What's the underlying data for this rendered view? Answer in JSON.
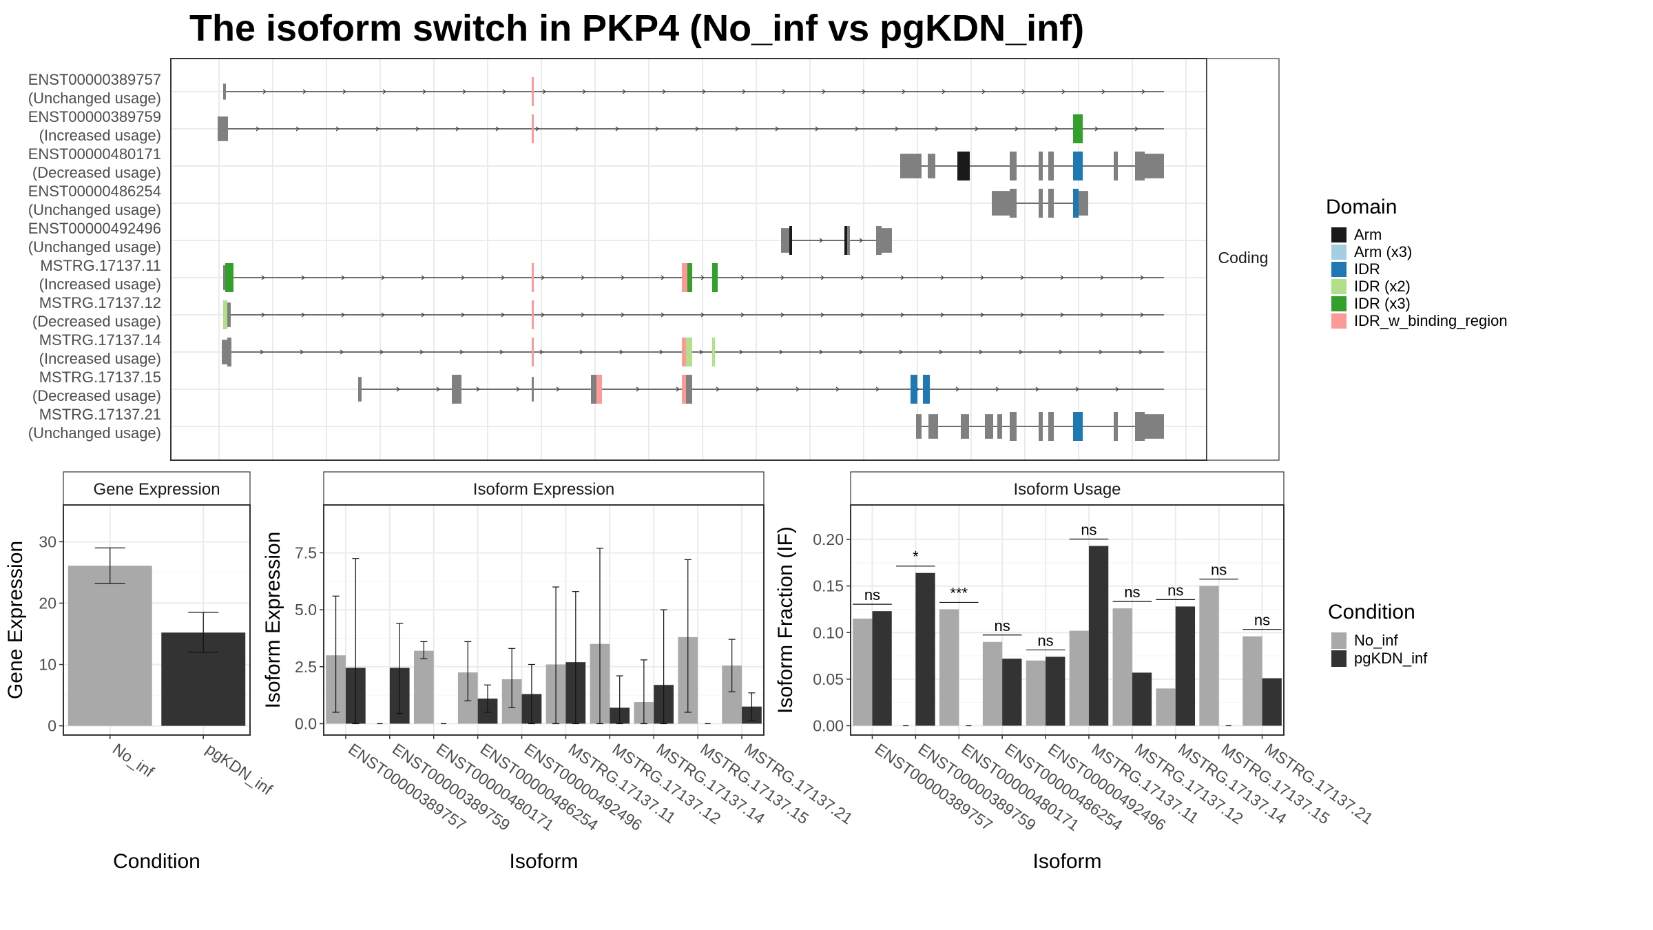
{
  "title": "The isoform switch in PKP4 (No_inf vs pgKDN_inf)",
  "colors": {
    "Arm": "#1a1a1a",
    "Arm (x3)": "#a6cee3",
    "IDR": "#1f78b4",
    "IDR (x2)": "#b2df8a",
    "IDR (x3)": "#33a02c",
    "IDR_w_binding_region": "#fb9a99",
    "no_domain": "#808080",
    "No_inf": "#a9a9a9",
    "pgKDN_inf": "#333333"
  },
  "structure_panel": {
    "strip_label": "Coding",
    "isoforms": [
      {
        "id": "ENST00000389757",
        "usage": "(Unchanged usage)"
      },
      {
        "id": "ENST00000389759",
        "usage": "(Increased usage)"
      },
      {
        "id": "ENST00000480171",
        "usage": "(Decreased usage)"
      },
      {
        "id": "ENST00000486254",
        "usage": "(Unchanged usage)"
      },
      {
        "id": "ENST00000492496",
        "usage": "(Unchanged usage)"
      },
      {
        "id": "MSTRG.17137.11",
        "usage": "(Increased usage)"
      },
      {
        "id": "MSTRG.17137.12",
        "usage": "(Decreased usage)"
      },
      {
        "id": "MSTRG.17137.14",
        "usage": "(Increased usage)"
      },
      {
        "id": "MSTRG.17137.15",
        "usage": "(Decreased usage)"
      },
      {
        "id": "MSTRG.17137.21",
        "usage": "(Unchanged usage)"
      }
    ]
  },
  "domain_legend": {
    "title": "Domain",
    "items": [
      "Arm",
      "Arm (x3)",
      "IDR",
      "IDR (x2)",
      "IDR (x3)",
      "IDR_w_binding_region"
    ]
  },
  "condition_legend": {
    "title": "Condition",
    "items": [
      "No_inf",
      "pgKDN_inf"
    ]
  },
  "chart_data": [
    {
      "type": "bar",
      "title": "Gene Expression",
      "xlabel": "Condition",
      "ylabel": "Gene Expression",
      "categories": [
        "No_inf",
        "pgKDN_inf"
      ],
      "values": [
        26.1,
        15.2
      ],
      "error_low": [
        23.2,
        12.0
      ],
      "error_high": [
        29.0,
        18.5
      ],
      "ylim": [
        -1.5,
        36
      ],
      "yticks": [
        0,
        10,
        20,
        30
      ],
      "grid": true
    },
    {
      "type": "bar",
      "title": "Isoform Expression",
      "xlabel": "Isoform",
      "ylabel": "Isoform Expression",
      "categories": [
        "ENST00000389757",
        "ENST00000389759",
        "ENST00000480171",
        "ENST00000486254",
        "ENST00000492496",
        "MSTRG.17137.11",
        "MSTRG.17137.12",
        "MSTRG.17137.14",
        "MSTRG.17137.15",
        "MSTRG.17137.21"
      ],
      "series": [
        {
          "name": "No_inf",
          "values": [
            3.0,
            0.0,
            3.2,
            2.25,
            1.95,
            2.6,
            3.5,
            0.95,
            3.8,
            2.55
          ],
          "err_low": [
            0.5,
            0.0,
            2.85,
            1.0,
            0.7,
            0.0,
            0.0,
            0.0,
            0.5,
            1.4
          ],
          "err_high": [
            5.6,
            0.0,
            3.6,
            3.6,
            3.3,
            6.0,
            7.7,
            2.8,
            7.2,
            3.7
          ]
        },
        {
          "name": "pgKDN_inf",
          "values": [
            2.45,
            2.45,
            0.0,
            1.1,
            1.3,
            2.7,
            0.7,
            1.7,
            0.0,
            0.75
          ],
          "err_low": [
            0.0,
            0.45,
            0.0,
            0.5,
            0.0,
            0.0,
            0.0,
            0.0,
            0.0,
            0.15
          ],
          "err_high": [
            7.25,
            4.4,
            0.0,
            1.7,
            2.6,
            5.8,
            2.1,
            5.0,
            0.0,
            1.35
          ]
        }
      ],
      "ylim": [
        -0.5,
        9.6
      ],
      "yticks": [
        0.0,
        2.5,
        5.0,
        7.5
      ],
      "grid": true
    },
    {
      "type": "bar",
      "title": "Isoform Usage",
      "xlabel": "Isoform",
      "ylabel": "Isoform Fraction (IF)",
      "categories": [
        "ENST00000389757",
        "ENST00000389759",
        "ENST00000480171",
        "ENST00000486254",
        "ENST00000492496",
        "MSTRG.17137.11",
        "MSTRG.17137.12",
        "MSTRG.17137.14",
        "MSTRG.17137.15",
        "MSTRG.17137.21"
      ],
      "series": [
        {
          "name": "No_inf",
          "values": [
            0.115,
            0.0,
            0.125,
            0.09,
            0.07,
            0.102,
            0.126,
            0.04,
            0.15,
            0.096
          ]
        },
        {
          "name": "pgKDN_inf",
          "values": [
            0.123,
            0.164,
            0.0,
            0.072,
            0.074,
            0.193,
            0.057,
            0.128,
            0.0,
            0.051
          ]
        }
      ],
      "significance": [
        "ns",
        "*",
        "***",
        "ns",
        "ns",
        "ns",
        "ns",
        "ns",
        "ns",
        "ns"
      ],
      "ylim": [
        -0.01,
        0.237
      ],
      "yticks": [
        0.0,
        0.05,
        0.1,
        0.15,
        0.2
      ],
      "ytick_labels": [
        "0.00",
        "0.05",
        "0.10",
        "0.15",
        "0.20"
      ],
      "grid": true
    }
  ]
}
